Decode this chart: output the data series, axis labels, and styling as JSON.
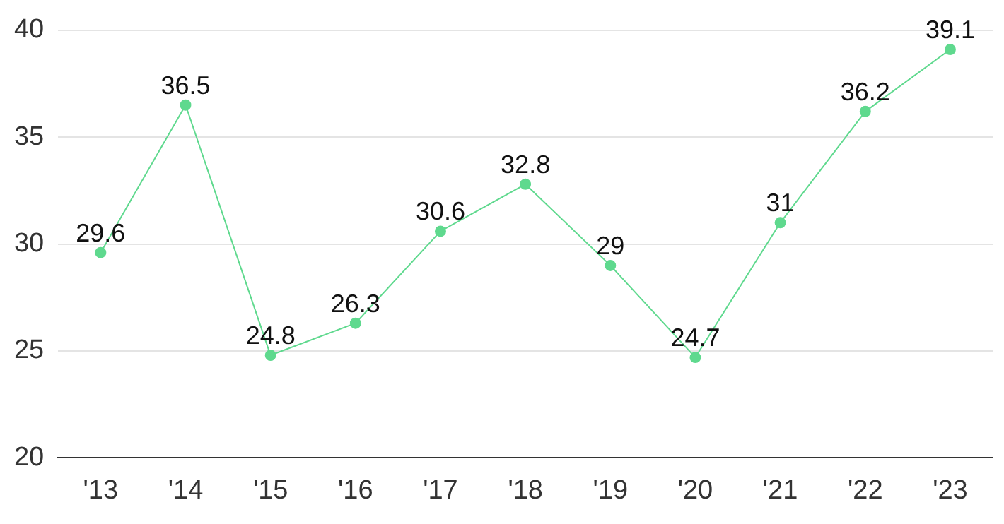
{
  "chart_data": {
    "type": "line",
    "categories": [
      "'13",
      "'14",
      "'15",
      "'16",
      "'17",
      "'18",
      "'19",
      "'20",
      "'21",
      "'22",
      "'23"
    ],
    "series": [
      {
        "color": "#5fd98e",
        "values": [
          29.6,
          36.5,
          24.8,
          26.3,
          30.6,
          32.8,
          29,
          24.7,
          31,
          36.2,
          39.1
        ]
      }
    ],
    "ylim": [
      20,
      40
    ],
    "yticks": [
      20,
      25,
      30,
      35,
      40
    ],
    "grid": "y",
    "marker": "circle",
    "line_style": "solid",
    "data_labels": true,
    "legend": false
  }
}
